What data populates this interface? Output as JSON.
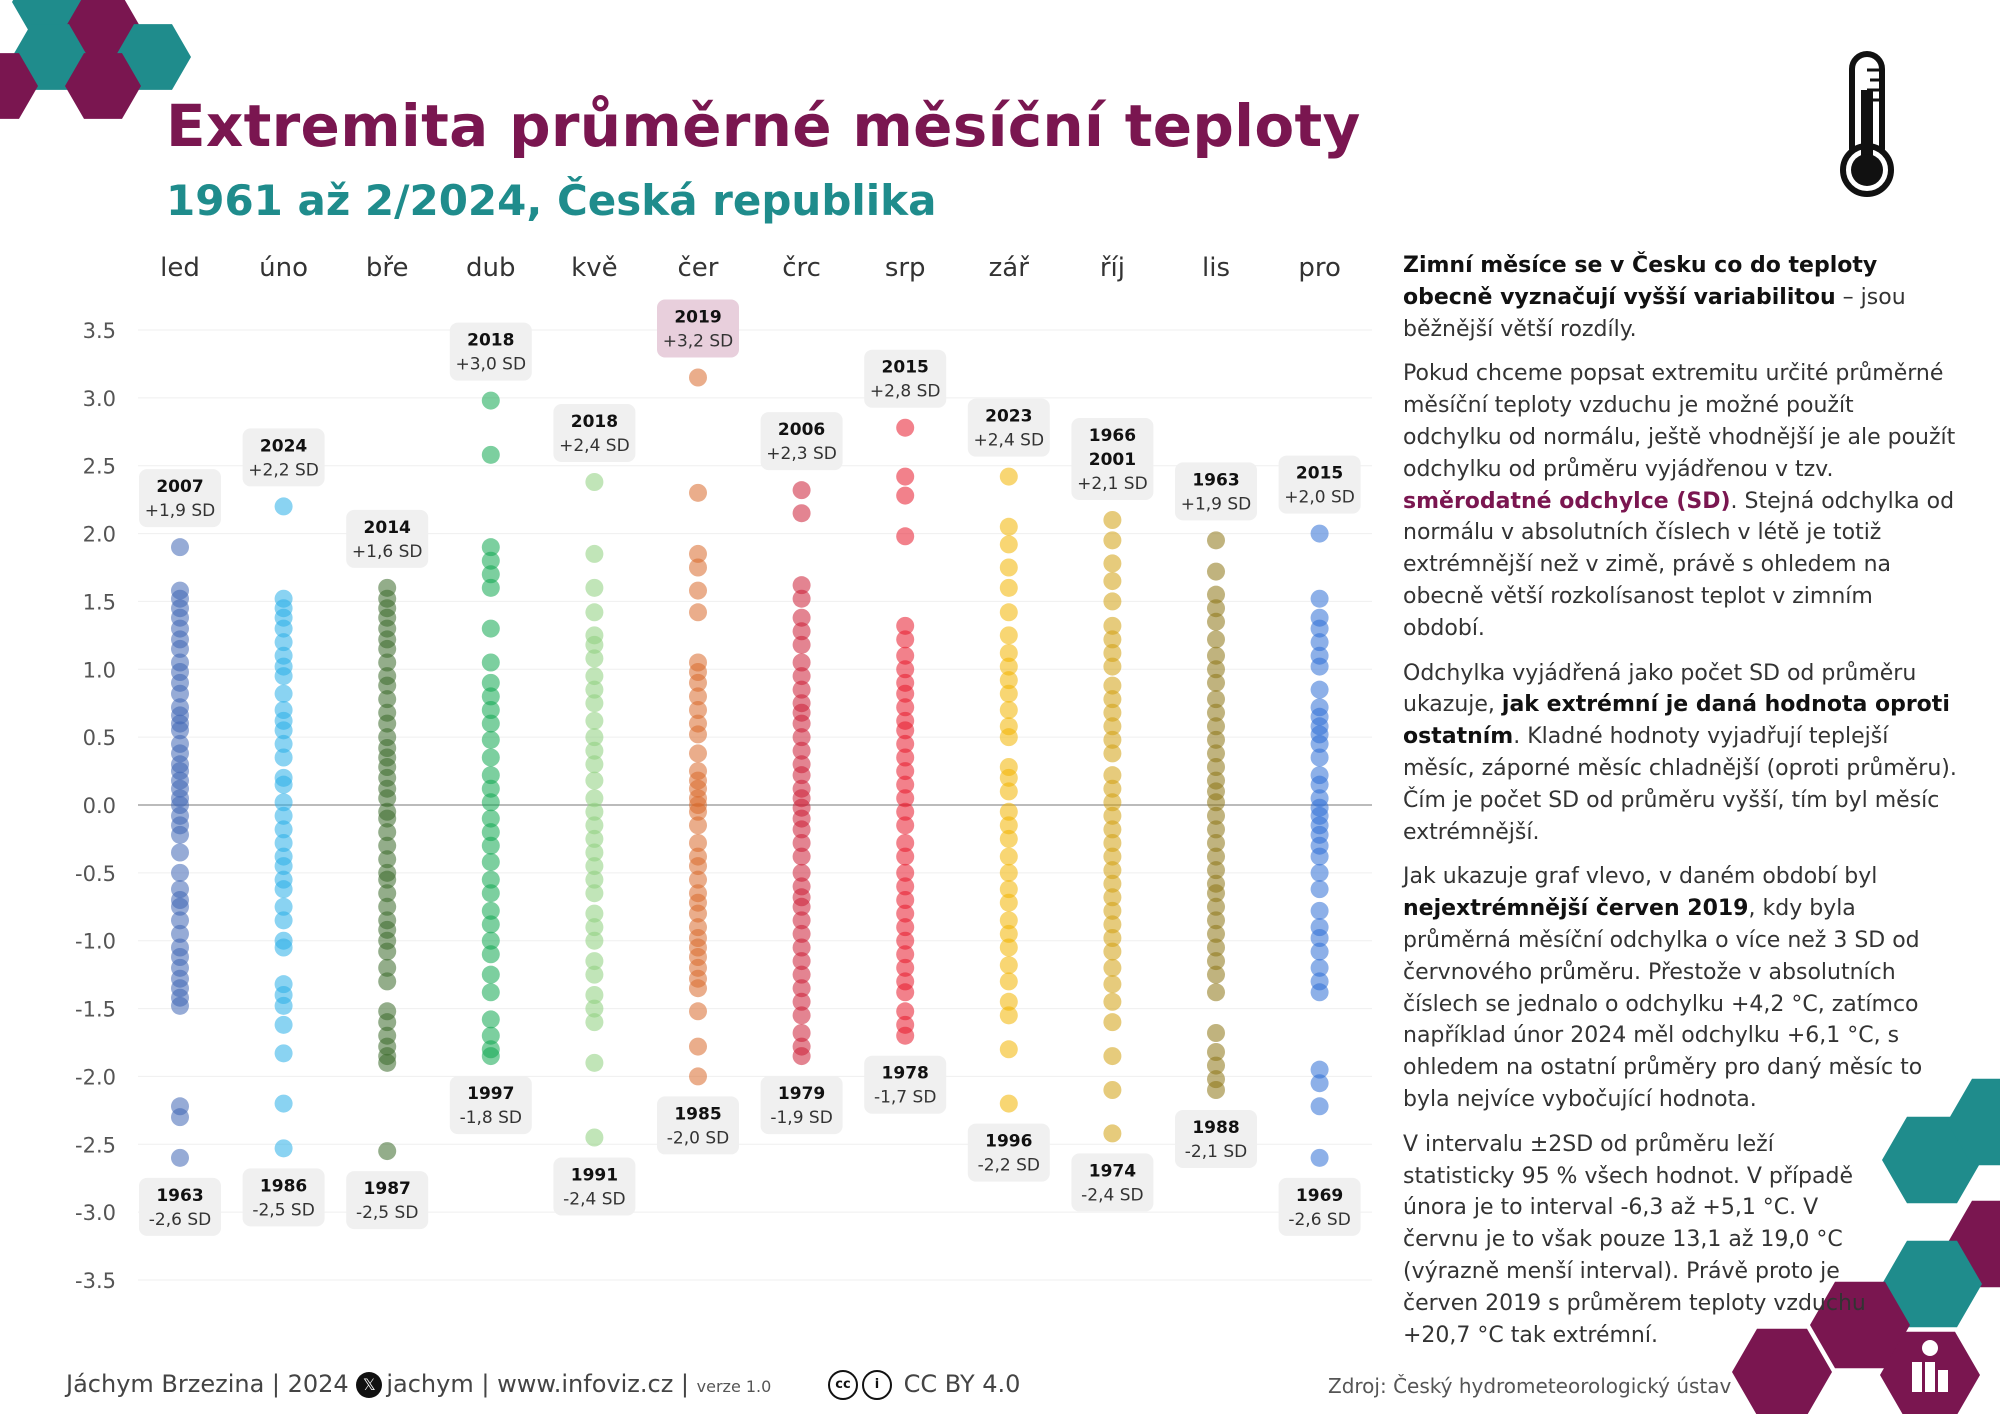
{
  "header": {
    "title": "Extremita průměrné měsíční teploty",
    "subtitle": "1961 až 2/2024, Česká republika"
  },
  "panel": {
    "p1_bold": "Zimní měsíce se v Česku co do teploty obecně vyznačují vyšší variabilitou",
    "p1_rest": " – jsou běžnější větší rozdíly.",
    "p2_a": "Pokud chceme popsat extremitu určité průměrné měsíční teploty vzduchu je možné použít odchylku od normálu, ještě vhodnější je ale použít odchylku od průměru vyjádřenou v tzv. ",
    "p2_accent": "směrodatné odchylce (SD)",
    "p2_b": ". Stejná odchylka od normálu v absolutních číslech v létě je totiž extrémnější než v zimě, právě s ohledem na obecně větší rozkolísanost teplot v zimním období.",
    "p3_a": "Odchylka vyjádřená jako počet SD od průměru ukazuje, ",
    "p3_bold": "jak extrémní je daná hodnota oproti ostatním",
    "p3_b": ". Kladné hodnoty vyjadřují teplejší měsíc, záporné měsíc chladnější (oproti průměru). Čím je počet SD od průměru vyšší, tím byl měsíc extrémnější.",
    "p4_a": "Jak ukazuje graf vlevo, v daném období byl ",
    "p4_bold": "nejextrémnější červen 2019",
    "p4_b": ", kdy byla průměrná měsíční odchylka o více než 3 SD od červnového průměru. Přestože v absolutních číslech se jednalo o odchylku +4,2 °C, zatímco například únor 2024 měl odchylku +6,1 °C, s ohledem na ostatní průměry pro daný měsíc to byla nejvíce vybočující hodnota.",
    "p5": "V intervalu ±2SD od průměru leží statisticky 95 % všech hodnot. V případě února je to interval -6,3 až +5,1 °C. V červnu je to však pouze 13,1 až 19,0 °C (výrazně menší interval). Právě proto je červen 2019 s průměrem teploty vzduchu +20,7 °C tak extrémní."
  },
  "footer": {
    "author": "Jáchym Brzezina | 2024",
    "x_glyph": "𝕏",
    "handle": "jachym",
    "site": "| www.infoviz.cz |",
    "version": "verze 1.0",
    "license": "CC BY 4.0",
    "cc_glyph": "cc",
    "by_glyph": "i",
    "source": "Zdroj: Český hydrometeorologický ústav"
  },
  "colors": {
    "title": "#7a1650",
    "subtitle": "#1f8c8c",
    "hex_teal": "#1f8c8c",
    "hex_plum": "#7a1650",
    "zero_line": "#bbbbbb"
  },
  "chart_data": {
    "type": "scatter",
    "ylim": [
      -3.5,
      3.5
    ],
    "yticks": [
      "3.5",
      "3.0",
      "2.5",
      "2.0",
      "1.5",
      "1.0",
      "0.5",
      "0.0",
      "-0.5",
      "-1.0",
      "-1.5",
      "-2.0",
      "-2.5",
      "-3.0",
      "-3.5"
    ],
    "grid": true,
    "zero_line": true,
    "series": [
      {
        "name": "led",
        "color": "#3f66b5",
        "values": [
          1.9,
          1.58,
          1.52,
          1.45,
          1.38,
          1.3,
          1.22,
          1.15,
          1.05,
          0.98,
          0.9,
          0.82,
          0.72,
          0.66,
          0.6,
          0.55,
          0.45,
          0.38,
          0.3,
          0.25,
          0.18,
          0.12,
          0.05,
          0.0,
          -0.08,
          -0.15,
          -0.22,
          -0.35,
          -0.5,
          -0.62,
          -0.7,
          -0.75,
          -0.85,
          -0.95,
          -1.05,
          -1.12,
          -1.2,
          -1.28,
          -1.35,
          -1.42,
          -1.48,
          -2.22,
          -2.3,
          -2.6
        ],
        "labels": [
          {
            "year": "2007",
            "value": "+1,9 SD",
            "pos": "above"
          },
          {
            "year": "1963",
            "value": "-2,6 SD",
            "pos": "below"
          }
        ]
      },
      {
        "name": "úno",
        "color": "#29aee8",
        "values": [
          2.2,
          1.52,
          1.45,
          1.38,
          1.3,
          1.2,
          1.1,
          1.02,
          0.95,
          0.82,
          0.7,
          0.62,
          0.55,
          0.45,
          0.35,
          0.2,
          0.15,
          0.02,
          -0.08,
          -0.18,
          -0.28,
          -0.38,
          -0.45,
          -0.55,
          -0.62,
          -0.75,
          -0.85,
          -1.0,
          -1.05,
          -1.32,
          -1.4,
          -1.48,
          -1.62,
          -1.83,
          -2.2,
          -2.53
        ],
        "labels": [
          {
            "year": "2024",
            "value": "+2,2 SD",
            "pos": "above"
          },
          {
            "year": "1986",
            "value": "-2,5 SD",
            "pos": "below"
          }
        ]
      },
      {
        "name": "bře",
        "color": "#3b6a2a",
        "values": [
          1.6,
          1.52,
          1.45,
          1.38,
          1.3,
          1.22,
          1.15,
          1.05,
          0.95,
          0.88,
          0.78,
          0.68,
          0.6,
          0.5,
          0.42,
          0.35,
          0.28,
          0.2,
          0.12,
          0.05,
          -0.05,
          -0.1,
          -0.2,
          -0.3,
          -0.4,
          -0.5,
          -0.55,
          -0.65,
          -0.75,
          -0.85,
          -0.92,
          -1.0,
          -1.08,
          -1.2,
          -1.3,
          -1.52,
          -1.6,
          -1.7,
          -1.78,
          -1.85,
          -1.9,
          -2.55
        ],
        "labels": [
          {
            "year": "2014",
            "value": "+1,6 SD",
            "pos": "above"
          },
          {
            "year": "1987",
            "value": "-2,5 SD",
            "pos": "below"
          }
        ]
      },
      {
        "name": "dub",
        "color": "#11a850",
        "values": [
          2.98,
          2.58,
          1.9,
          1.8,
          1.7,
          1.6,
          1.3,
          1.05,
          0.9,
          0.8,
          0.7,
          0.6,
          0.48,
          0.35,
          0.22,
          0.12,
          0.02,
          -0.1,
          -0.2,
          -0.3,
          -0.42,
          -0.55,
          -0.65,
          -0.78,
          -0.88,
          -1.0,
          -1.1,
          -1.25,
          -1.38,
          -1.58,
          -1.7,
          -1.8,
          -1.85
        ],
        "labels": [
          {
            "year": "2018",
            "value": "+3,0 SD",
            "pos": "above"
          },
          {
            "year": "1997",
            "value": "-1,8 SD",
            "pos": "below"
          }
        ]
      },
      {
        "name": "kvě",
        "color": "#8ed07e",
        "values": [
          2.38,
          1.85,
          1.6,
          1.42,
          1.25,
          1.18,
          1.08,
          0.95,
          0.85,
          0.75,
          0.62,
          0.5,
          0.4,
          0.3,
          0.18,
          0.05,
          -0.05,
          -0.15,
          -0.25,
          -0.35,
          -0.45,
          -0.55,
          -0.65,
          -0.8,
          -0.9,
          -1.0,
          -1.15,
          -1.25,
          -1.4,
          -1.5,
          -1.6,
          -1.9,
          -2.45
        ],
        "labels": [
          {
            "year": "2018",
            "value": "+2,4 SD",
            "pos": "above"
          },
          {
            "year": "1991",
            "value": "-2,4 SD",
            "pos": "below"
          }
        ]
      },
      {
        "name": "čer",
        "color": "#d86a2c",
        "values": [
          3.15,
          2.3,
          1.85,
          1.75,
          1.58,
          1.42,
          1.05,
          0.98,
          0.9,
          0.8,
          0.7,
          0.6,
          0.52,
          0.38,
          0.25,
          0.18,
          0.12,
          0.05,
          0.0,
          -0.05,
          -0.15,
          -0.28,
          -0.38,
          -0.45,
          -0.55,
          -0.65,
          -0.72,
          -0.8,
          -0.9,
          -0.98,
          -1.05,
          -1.12,
          -1.2,
          -1.28,
          -1.35,
          -1.52,
          -1.78,
          -2.0
        ],
        "labels": [
          {
            "year": "2019",
            "value": "+3,2 SD",
            "pos": "above",
            "highlight": true
          },
          {
            "year": "1985",
            "value": "-2,0 SD",
            "pos": "below"
          }
        ]
      },
      {
        "name": "črc",
        "color": "#cc1f36",
        "values": [
          2.32,
          2.15,
          1.62,
          1.52,
          1.38,
          1.28,
          1.18,
          1.05,
          0.95,
          0.85,
          0.75,
          0.68,
          0.6,
          0.5,
          0.4,
          0.3,
          0.22,
          0.12,
          0.05,
          -0.02,
          -0.1,
          -0.18,
          -0.28,
          -0.38,
          -0.5,
          -0.6,
          -0.68,
          -0.75,
          -0.85,
          -0.95,
          -1.05,
          -1.15,
          -1.25,
          -1.35,
          -1.45,
          -1.55,
          -1.68,
          -1.78,
          -1.85
        ],
        "labels": [
          {
            "year": "2006",
            "value": "+2,3 SD",
            "pos": "above"
          },
          {
            "year": "1979",
            "value": "-1,9 SD",
            "pos": "below"
          }
        ]
      },
      {
        "name": "srp",
        "color": "#e8192b",
        "values": [
          2.78,
          2.42,
          2.28,
          1.98,
          1.32,
          1.22,
          1.1,
          1.0,
          0.9,
          0.82,
          0.72,
          0.62,
          0.55,
          0.45,
          0.35,
          0.25,
          0.15,
          0.05,
          -0.05,
          -0.15,
          -0.28,
          -0.38,
          -0.5,
          -0.6,
          -0.7,
          -0.8,
          -0.9,
          -1.0,
          -1.1,
          -1.2,
          -1.3,
          -1.38,
          -1.52,
          -1.62,
          -1.7
        ],
        "labels": [
          {
            "year": "2015",
            "value": "+2,8 SD",
            "pos": "above"
          },
          {
            "year": "1978",
            "value": "-1,7 SD",
            "pos": "below"
          }
        ]
      },
      {
        "name": "zář",
        "color": "#f2b400",
        "values": [
          2.42,
          2.05,
          1.92,
          1.75,
          1.6,
          1.42,
          1.25,
          1.12,
          1.02,
          0.92,
          0.82,
          0.7,
          0.58,
          0.5,
          0.28,
          0.2,
          0.1,
          -0.05,
          -0.15,
          -0.25,
          -0.38,
          -0.5,
          -0.62,
          -0.72,
          -0.85,
          -0.95,
          -1.05,
          -1.18,
          -1.3,
          -1.45,
          -1.55,
          -1.8,
          -2.2
        ],
        "labels": [
          {
            "year": "2023",
            "value": "+2,4 SD",
            "pos": "above"
          },
          {
            "year": "1996",
            "value": "-2,2 SD",
            "pos": "below"
          }
        ]
      },
      {
        "name": "říj",
        "color": "#d1a010",
        "values": [
          2.1,
          1.95,
          1.78,
          1.65,
          1.5,
          1.32,
          1.22,
          1.12,
          1.02,
          0.88,
          0.78,
          0.68,
          0.58,
          0.48,
          0.38,
          0.22,
          0.12,
          0.02,
          -0.08,
          -0.18,
          -0.28,
          -0.38,
          -0.48,
          -0.58,
          -0.68,
          -0.78,
          -0.88,
          -0.98,
          -1.08,
          -1.2,
          -1.32,
          -1.45,
          -1.6,
          -1.85,
          -2.1,
          -2.42
        ],
        "labels": [
          {
            "year": "1966\n2001",
            "value": "+2,1 SD",
            "pos": "above"
          },
          {
            "year": "1974",
            "value": "-2,4 SD",
            "pos": "below"
          }
        ]
      },
      {
        "name": "lis",
        "color": "#8c7414",
        "values": [
          1.95,
          1.72,
          1.55,
          1.45,
          1.35,
          1.22,
          1.1,
          1.0,
          0.9,
          0.78,
          0.68,
          0.58,
          0.48,
          0.38,
          0.28,
          0.18,
          0.1,
          0.02,
          -0.08,
          -0.18,
          -0.28,
          -0.38,
          -0.48,
          -0.58,
          -0.65,
          -0.75,
          -0.85,
          -0.95,
          -1.05,
          -1.15,
          -1.25,
          -1.38,
          -1.68,
          -1.82,
          -1.92,
          -2.02,
          -2.1
        ],
        "labels": [
          {
            "year": "1963",
            "value": "+1,9 SD",
            "pos": "above"
          },
          {
            "year": "1988",
            "value": "-2,1 SD",
            "pos": "below"
          }
        ]
      },
      {
        "name": "pro",
        "color": "#2f6fd6",
        "values": [
          2.0,
          1.52,
          1.38,
          1.3,
          1.2,
          1.1,
          1.02,
          0.85,
          0.72,
          0.65,
          0.58,
          0.52,
          0.45,
          0.35,
          0.22,
          0.15,
          0.05,
          -0.02,
          -0.08,
          -0.15,
          -0.22,
          -0.3,
          -0.38,
          -0.5,
          -0.62,
          -0.78,
          -0.9,
          -0.98,
          -1.08,
          -1.2,
          -1.3,
          -1.38,
          -1.95,
          -2.05,
          -2.22,
          -2.6
        ],
        "labels": [
          {
            "year": "2015",
            "value": "+2,0 SD",
            "pos": "above"
          },
          {
            "year": "1969",
            "value": "-2,6 SD",
            "pos": "below"
          }
        ]
      }
    ]
  }
}
